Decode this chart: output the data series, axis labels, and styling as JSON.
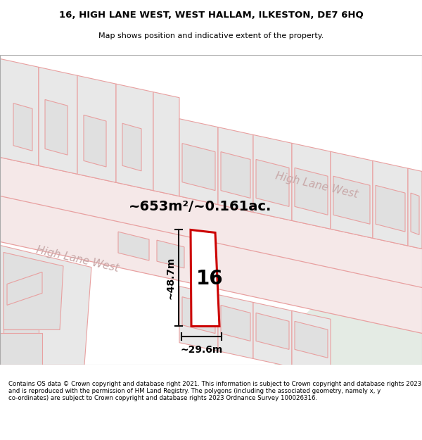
{
  "title_line1": "16, HIGH LANE WEST, WEST HALLAM, ILKESTON, DE7 6HQ",
  "title_line2": "Map shows position and indicative extent of the property.",
  "footer_text": "Contains OS data © Crown copyright and database right 2021. This information is subject to Crown copyright and database rights 2023 and is reproduced with the permission of HM Land Registry. The polygons (including the associated geometry, namely x, y co-ordinates) are subject to Crown copyright and database rights 2023 Ordnance Survey 100026316.",
  "area_label": "~653m²/~0.161ac.",
  "number_label": "16",
  "height_label": "~48.7m",
  "width_label": "~29.6m",
  "road_label_left": "High Lane West",
  "road_label_right": "High Lane West",
  "map_bg": "#f8f8f8",
  "map_bg_green": "#e4ebe4",
  "building_fill": "#e8e8e8",
  "building_outline": "#e8a0a0",
  "road_outline": "#e8a0a0",
  "highlight_fill": "#ffffff",
  "highlight_outline": "#cc0000",
  "dim_color": "#111111",
  "road_label_color": "#c8a8a8",
  "title_fontsize": 9.5,
  "subtitle_fontsize": 8,
  "footer_fontsize": 6.2,
  "area_fontsize": 14,
  "number_fontsize": 20,
  "dim_fontsize": 10,
  "road_label_fontsize": 11
}
